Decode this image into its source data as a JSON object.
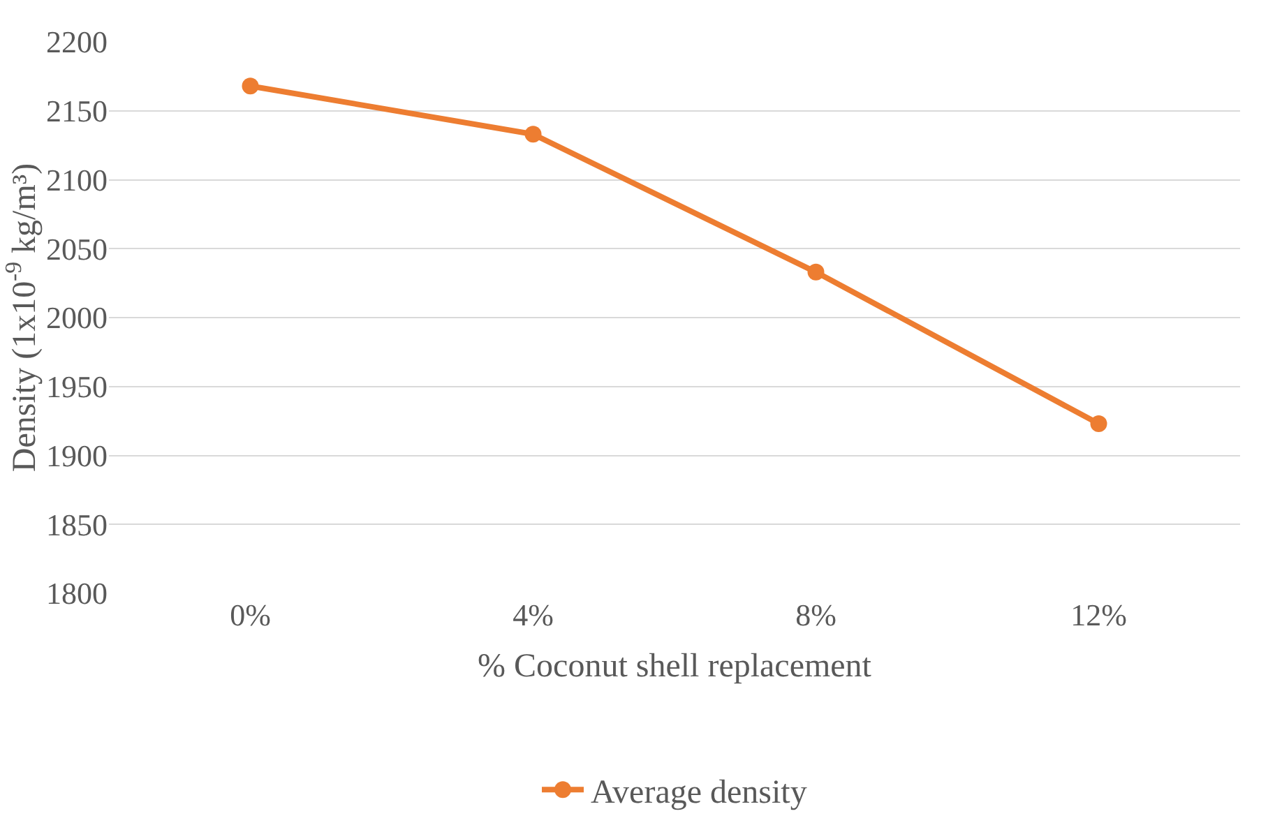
{
  "chart_data": {
    "type": "line",
    "xlabel": "% Coconut shell replacement",
    "ylabel": "Density (1x10$^{-9}$ kg/m³)",
    "categories": [
      "0%",
      "4%",
      "8%",
      "12%"
    ],
    "series": [
      {
        "name": "Average density",
        "color": "#ed7d31",
        "values": [
          2168,
          2133,
          2033,
          1923
        ]
      }
    ],
    "ylim": [
      1800,
      2200
    ],
    "yticks": [
      1800,
      1850,
      1900,
      1950,
      2000,
      2050,
      2100,
      2150,
      2200
    ],
    "grid": "y",
    "legend": "bottom",
    "marker": "circle",
    "line_style": "solid"
  }
}
